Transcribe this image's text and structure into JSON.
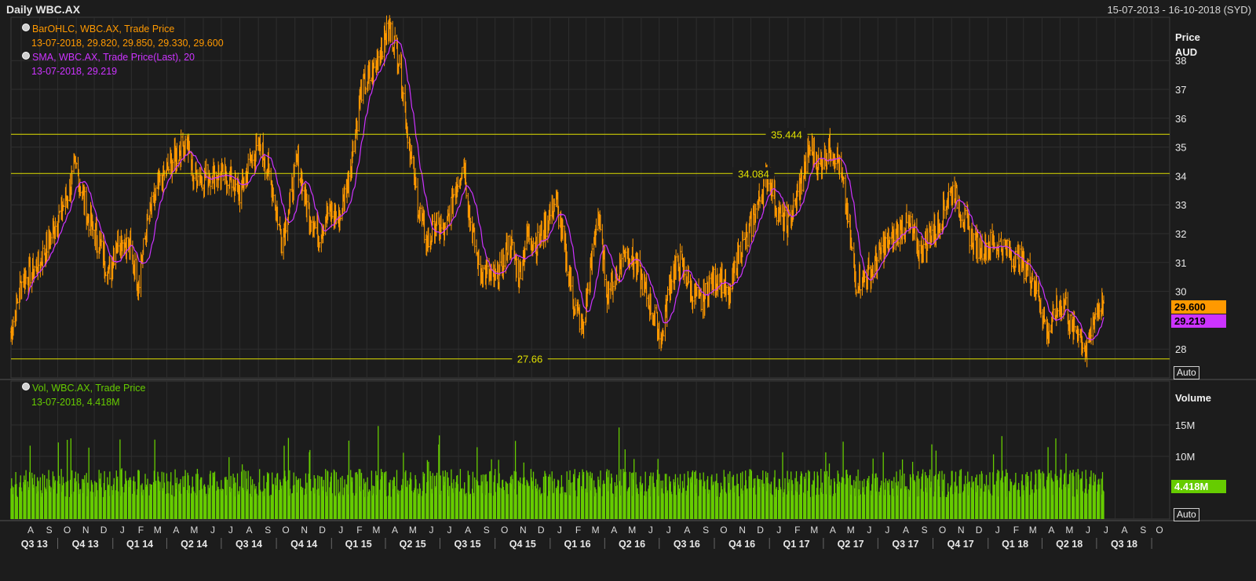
{
  "header": {
    "title": "Daily WBC.AX",
    "date_range": "15-07-2013 - 16-10-2018 (SYD)"
  },
  "legend": {
    "ohlc_name": "BarOHLC, WBC.AX, Trade Price",
    "ohlc_values": "13-07-2018, 29.820, 29.850, 29.330, 29.600",
    "sma_name": "SMA, WBC.AX, Trade Price(Last),  20",
    "sma_values": "13-07-2018, 29.219",
    "vol_name": "Vol, WBC.AX, Trade Price",
    "vol_values": "13-07-2018, 4.418M"
  },
  "price_axis": {
    "head1": "Price",
    "head2": "AUD",
    "auto_label": "Auto",
    "last_price_tag": "29.600",
    "last_sma_tag": "29.219"
  },
  "volume_axis": {
    "head": "Volume",
    "auto_label": "Auto",
    "last_volume_tag": "4.418M"
  },
  "colors": {
    "background": "#1c1c1c",
    "grid": "#2e2e2e",
    "price": "#ff9900",
    "sma": "#cc33ff",
    "volume": "#66cc00",
    "hline": "#e0e000",
    "text": "#d8d8d8"
  },
  "chart_data": {
    "type": "line",
    "price": {
      "ylim": [
        27,
        39.5
      ],
      "ticks": [
        "28",
        "30",
        "31",
        "32",
        "33",
        "34",
        "35",
        "36",
        "37",
        "38"
      ],
      "tick_values": [
        28,
        30,
        31,
        32,
        33,
        34,
        35,
        36,
        37,
        38
      ],
      "horizontal_lines": [
        {
          "value": 35.444,
          "label": "35.444"
        },
        {
          "value": 34.084,
          "label": "34.084"
        },
        {
          "value": 27.66,
          "label": "27.66"
        }
      ],
      "series_ohlc_close_anchors": [
        [
          "2013-07-15",
          28.6
        ],
        [
          "2013-08-01",
          30.3
        ],
        [
          "2013-09-01",
          31.0
        ],
        [
          "2013-10-01",
          32.5
        ],
        [
          "2013-10-15",
          33.2
        ],
        [
          "2013-11-01",
          34.3
        ],
        [
          "2013-11-20",
          32.6
        ],
        [
          "2013-12-10",
          31.6
        ],
        [
          "2013-12-25",
          30.6
        ],
        [
          "2014-01-10",
          31.9
        ],
        [
          "2014-01-30",
          31.5
        ],
        [
          "2014-02-12",
          30.3
        ],
        [
          "2014-03-01",
          32.5
        ],
        [
          "2014-03-20",
          33.7
        ],
        [
          "2014-04-05",
          34.3
        ],
        [
          "2014-04-20",
          34.8
        ],
        [
          "2014-05-05",
          35.2
        ],
        [
          "2014-05-15",
          34.0
        ],
        [
          "2014-06-01",
          34.0
        ],
        [
          "2014-06-20",
          34.1
        ],
        [
          "2014-07-15",
          33.9
        ],
        [
          "2014-08-01",
          33.4
        ],
        [
          "2014-08-20",
          34.6
        ],
        [
          "2014-09-05",
          35.0
        ],
        [
          "2014-09-20",
          34.0
        ],
        [
          "2014-10-10",
          31.8
        ],
        [
          "2014-10-25",
          33.2
        ],
        [
          "2014-11-05",
          34.5
        ],
        [
          "2014-11-20",
          33.0
        ],
        [
          "2014-12-10",
          31.9
        ],
        [
          "2014-12-25",
          32.7
        ],
        [
          "2015-01-15",
          32.5
        ],
        [
          "2015-02-01",
          34.3
        ],
        [
          "2015-02-20",
          37.0
        ],
        [
          "2015-03-10",
          37.5
        ],
        [
          "2015-03-25",
          38.5
        ],
        [
          "2015-04-08",
          39.1
        ],
        [
          "2015-04-25",
          38.0
        ],
        [
          "2015-05-05",
          36.0
        ],
        [
          "2015-05-10",
          35.2
        ],
        [
          "2015-05-25",
          33.0
        ],
        [
          "2015-06-10",
          31.6
        ],
        [
          "2015-06-25",
          32.3
        ],
        [
          "2015-07-10",
          32.0
        ],
        [
          "2015-07-25",
          33.5
        ],
        [
          "2015-08-10",
          34.5
        ],
        [
          "2015-08-20",
          32.5
        ],
        [
          "2015-09-05",
          30.8
        ],
        [
          "2015-09-25",
          30.4
        ],
        [
          "2015-10-10",
          30.6
        ],
        [
          "2015-10-25",
          31.8
        ],
        [
          "2015-11-10",
          30.6
        ],
        [
          "2015-11-25",
          32.0
        ],
        [
          "2015-12-10",
          31.6
        ],
        [
          "2015-12-25",
          32.3
        ],
        [
          "2016-01-10",
          33.2
        ],
        [
          "2016-01-25",
          31.5
        ],
        [
          "2016-02-10",
          29.5
        ],
        [
          "2016-02-25",
          28.7
        ],
        [
          "2016-03-10",
          31.0
        ],
        [
          "2016-03-20",
          32.8
        ],
        [
          "2016-04-05",
          30.0
        ],
        [
          "2016-04-20",
          30.5
        ],
        [
          "2016-05-05",
          31.5
        ],
        [
          "2016-05-20",
          31.0
        ],
        [
          "2016-06-05",
          30.2
        ],
        [
          "2016-06-25",
          29.0
        ],
        [
          "2016-07-05",
          28.3
        ],
        [
          "2016-07-20",
          30.5
        ],
        [
          "2016-08-05",
          31.0
        ],
        [
          "2016-08-25",
          29.9
        ],
        [
          "2016-09-10",
          29.6
        ],
        [
          "2016-09-25",
          30.3
        ],
        [
          "2016-10-10",
          30.6
        ],
        [
          "2016-10-25",
          29.7
        ],
        [
          "2016-11-10",
          31.3
        ],
        [
          "2016-11-25",
          31.8
        ],
        [
          "2016-12-15",
          33.2
        ],
        [
          "2016-12-31",
          34.1
        ],
        [
          "2017-01-15",
          32.7
        ],
        [
          "2017-01-30",
          32.3
        ],
        [
          "2017-02-10",
          32.8
        ],
        [
          "2017-02-25",
          33.9
        ],
        [
          "2017-03-10",
          35.0
        ],
        [
          "2017-03-25",
          34.3
        ],
        [
          "2017-04-10",
          35.0
        ],
        [
          "2017-04-25",
          34.6
        ],
        [
          "2017-05-05",
          33.5
        ],
        [
          "2017-05-15",
          32.0
        ],
        [
          "2017-05-25",
          30.3
        ],
        [
          "2017-06-10",
          30.5
        ],
        [
          "2017-06-25",
          30.9
        ],
        [
          "2017-07-10",
          31.5
        ],
        [
          "2017-07-25",
          31.8
        ],
        [
          "2017-08-10",
          32.3
        ],
        [
          "2017-08-25",
          32.2
        ],
        [
          "2017-09-10",
          31.3
        ],
        [
          "2017-09-25",
          32.0
        ],
        [
          "2017-10-10",
          32.2
        ],
        [
          "2017-10-25",
          33.3
        ],
        [
          "2017-11-05",
          33.5
        ],
        [
          "2017-11-20",
          32.6
        ],
        [
          "2017-12-05",
          31.8
        ],
        [
          "2017-12-20",
          31.5
        ],
        [
          "2018-01-10",
          31.7
        ],
        [
          "2018-01-25",
          31.5
        ],
        [
          "2018-02-10",
          31.2
        ],
        [
          "2018-02-25",
          31.0
        ],
        [
          "2018-03-10",
          30.7
        ],
        [
          "2018-03-25",
          30.0
        ],
        [
          "2018-04-10",
          28.5
        ],
        [
          "2018-04-25",
          29.4
        ],
        [
          "2018-05-10",
          29.6
        ],
        [
          "2018-05-20",
          28.6
        ],
        [
          "2018-06-01",
          28.7
        ],
        [
          "2018-06-15",
          27.8
        ],
        [
          "2018-06-25",
          29.0
        ],
        [
          "2018-07-05",
          29.5
        ],
        [
          "2018-07-13",
          29.6
        ]
      ],
      "last_close": 29.6,
      "last_sma": 29.219
    },
    "volume": {
      "ylim": [
        0,
        22
      ],
      "ticks": [
        "10M",
        "15M"
      ],
      "tick_values": [
        10,
        15
      ],
      "unit": "M",
      "last": 4.418,
      "typical_range": [
        3.5,
        8
      ]
    },
    "x_axis": {
      "start": "2013-07-15",
      "end": "2018-10-31",
      "month_labels": [
        "A",
        "S",
        "O",
        "N",
        "D",
        "J",
        "F",
        "M",
        "A",
        "M",
        "J",
        "J",
        "A",
        "S",
        "O",
        "N",
        "D",
        "J",
        "F",
        "M",
        "A",
        "M",
        "J",
        "J",
        "A",
        "S",
        "O",
        "N",
        "D",
        "J",
        "F",
        "M",
        "A",
        "M",
        "J",
        "J",
        "A",
        "S",
        "O",
        "N",
        "D",
        "J",
        "F",
        "M",
        "A",
        "M",
        "J",
        "J",
        "A",
        "S",
        "O",
        "N",
        "D",
        "J",
        "F",
        "M",
        "A",
        "M",
        "J",
        "J",
        "A",
        "S",
        "O"
      ],
      "quarter_labels": [
        "Q3 13",
        "Q4 13",
        "Q1 14",
        "Q2 14",
        "Q3 14",
        "Q4 14",
        "Q1 15",
        "Q2 15",
        "Q3 15",
        "Q4 15",
        "Q1 16",
        "Q2 16",
        "Q3 16",
        "Q4 16",
        "Q1 17",
        "Q2 17",
        "Q3 17",
        "Q4 17",
        "Q1 18",
        "Q2 18",
        "Q3 18"
      ]
    }
  }
}
